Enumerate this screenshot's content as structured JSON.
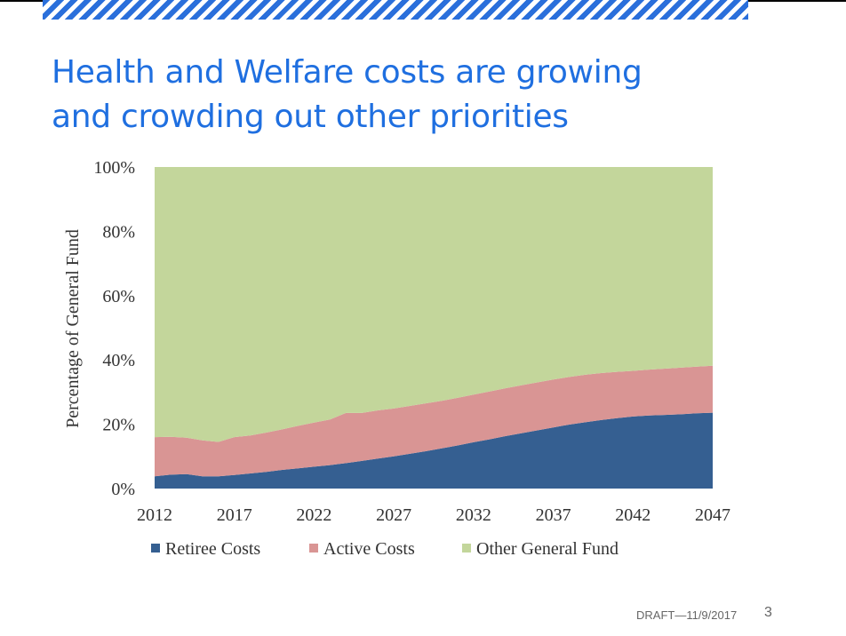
{
  "slide": {
    "title_line1": "Health and Welfare costs are growing",
    "title_line2": "and crowding out other priorities",
    "footer": "DRAFT—11/9/2017",
    "page_number": "3",
    "accent_color": "#1f6fe0"
  },
  "chart_data": {
    "type": "area",
    "stacked": true,
    "title": "",
    "xlabel": "",
    "ylabel": "Percentage of General Fund",
    "x": [
      2012,
      2013,
      2014,
      2015,
      2016,
      2017,
      2018,
      2019,
      2020,
      2021,
      2022,
      2023,
      2024,
      2025,
      2026,
      2027,
      2028,
      2029,
      2030,
      2031,
      2032,
      2033,
      2034,
      2035,
      2036,
      2037,
      2038,
      2039,
      2040,
      2041,
      2042,
      2043,
      2044,
      2045,
      2046,
      2047
    ],
    "xticks": [
      "2012",
      "2017",
      "2022",
      "2027",
      "2032",
      "2037",
      "2042",
      "2047"
    ],
    "ylim": [
      0,
      100
    ],
    "yticks": [
      "0%",
      "20%",
      "40%",
      "60%",
      "80%",
      "100%"
    ],
    "series": [
      {
        "name": "Retiree Costs",
        "color": "#355f91",
        "values": [
          3.8,
          4.3,
          4.5,
          3.8,
          3.8,
          4.2,
          4.7,
          5.2,
          5.8,
          6.3,
          6.8,
          7.3,
          7.9,
          8.6,
          9.3,
          10.0,
          10.8,
          11.6,
          12.5,
          13.4,
          14.4,
          15.3,
          16.3,
          17.2,
          18.1,
          19.0,
          19.9,
          20.6,
          21.3,
          21.9,
          22.4,
          22.7,
          22.9,
          23.1,
          23.4,
          23.6
        ]
      },
      {
        "name": "Active Costs",
        "color": "#d99594",
        "values": [
          12.2,
          11.8,
          11.3,
          11.2,
          10.7,
          11.8,
          11.8,
          12.2,
          12.6,
          13.2,
          13.7,
          14.2,
          15.6,
          14.9,
          15.0,
          14.9,
          14.9,
          14.9,
          14.8,
          14.8,
          14.8,
          14.9,
          14.9,
          14.9,
          14.9,
          14.9,
          14.8,
          14.8,
          14.6,
          14.4,
          14.2,
          14.3,
          14.4,
          14.5,
          14.5,
          14.6
        ]
      },
      {
        "name": "Other General Fund",
        "color": "#c3d69b",
        "values": [
          84.0,
          83.9,
          84.2,
          85.0,
          85.5,
          84.0,
          83.5,
          82.6,
          81.6,
          80.5,
          79.5,
          78.5,
          76.5,
          76.5,
          75.7,
          75.1,
          74.3,
          73.5,
          72.7,
          71.8,
          70.8,
          69.8,
          68.8,
          67.9,
          67.0,
          66.1,
          65.3,
          64.6,
          64.1,
          63.7,
          63.4,
          63.0,
          62.7,
          62.4,
          62.1,
          61.8
        ]
      }
    ],
    "legend": "bottom"
  }
}
